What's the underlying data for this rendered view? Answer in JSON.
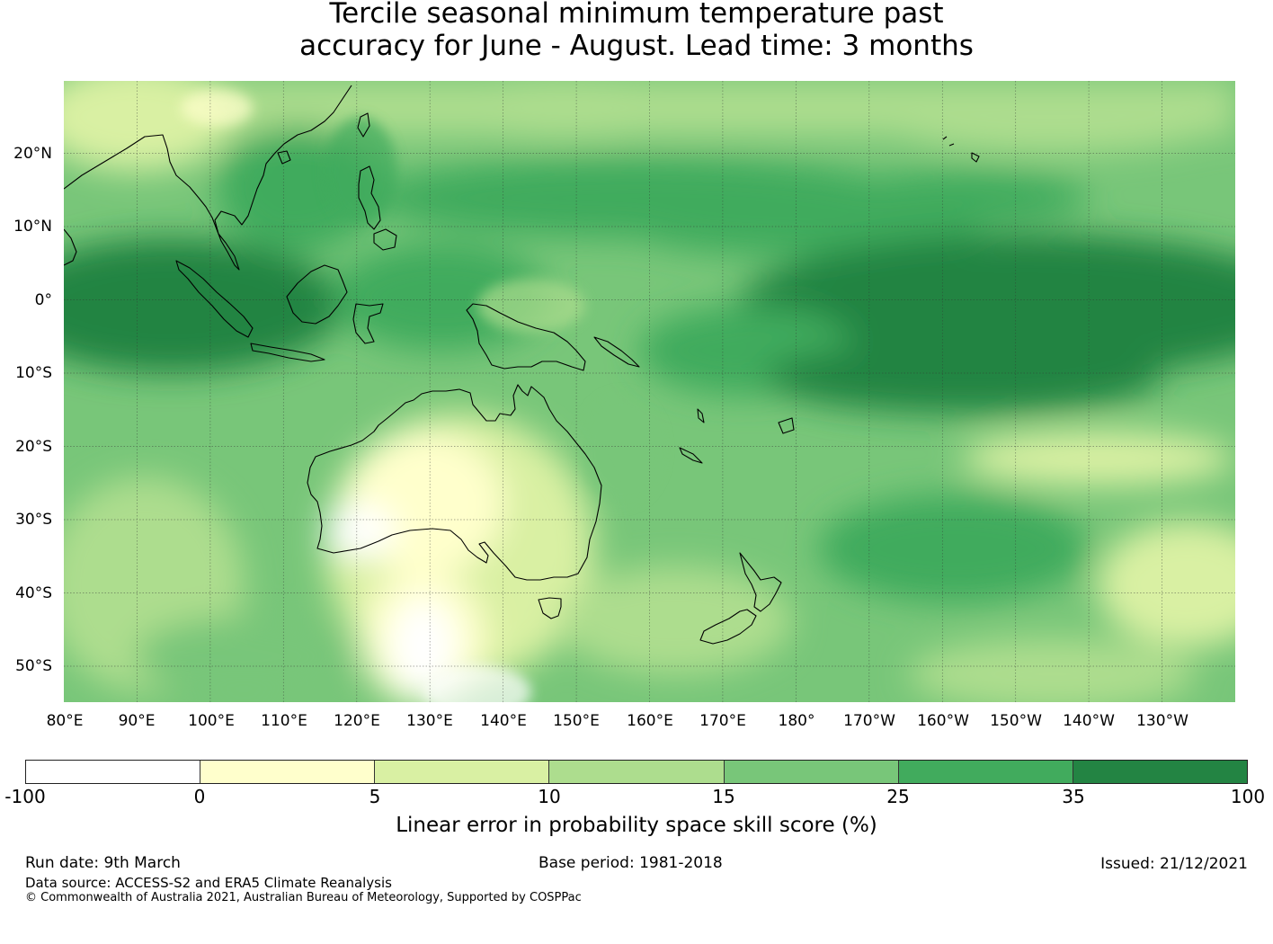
{
  "title": {
    "line1": "Tercile seasonal minimum temperature past",
    "line2": "accuracy for June - August. Lead time: 3 months"
  },
  "map": {
    "latitude_labels": [
      "20°N",
      "10°N",
      "0°",
      "10°S",
      "20°S",
      "30°S",
      "40°S",
      "50°S"
    ],
    "longitude_labels": [
      "80°E",
      "90°E",
      "100°E",
      "110°E",
      "120°E",
      "130°E",
      "140°E",
      "150°E",
      "160°E",
      "170°E",
      "180°",
      "170°W",
      "160°W",
      "150°W",
      "140°W",
      "130°W"
    ],
    "lat_range": [
      -55,
      30
    ],
    "lon_range": [
      80,
      240
    ],
    "coastline_color": "#000000",
    "gridlines": true
  },
  "colorbar": {
    "label": "Linear error in probability space skill score (%)",
    "ticks": [
      "-100",
      "0",
      "5",
      "10",
      "15",
      "25",
      "35",
      "100"
    ],
    "colors": [
      "#ffffff",
      "#ffffcc",
      "#d9f0a3",
      "#addd8e",
      "#78c679",
      "#41ab5d",
      "#238443"
    ]
  },
  "footer": {
    "run_date": "Run date: 9th March",
    "base_period": "Base period: 1981-2018",
    "issued": "Issued: 21/12/2021",
    "data_source": "Data source: ACCESS-S2 and ERA5 Climate Reanalysis",
    "copyright": "© Commonwealth of Australia 2021, Australian Bureau of Meteorology, Supported by COSPPac"
  }
}
